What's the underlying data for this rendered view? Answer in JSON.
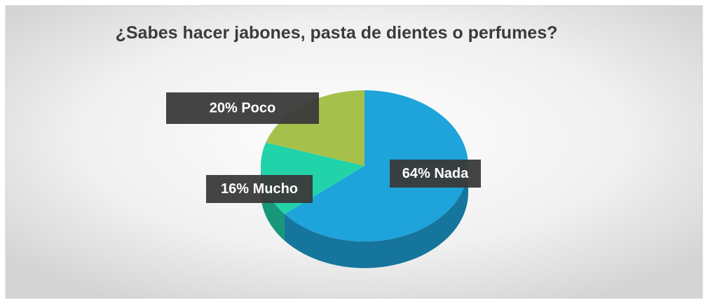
{
  "chart_data": {
    "type": "pie3d",
    "title": "¿Sabes hacer jabones, pasta de dientes o perfumes?",
    "categories": [
      "Nada",
      "Mucho",
      "Poco"
    ],
    "values": [
      64,
      16,
      20
    ],
    "value_labels": [
      "64%",
      "16%",
      "20%"
    ],
    "colors": [
      "#1ea3da",
      "#22d2a9",
      "#a6c14b"
    ]
  }
}
